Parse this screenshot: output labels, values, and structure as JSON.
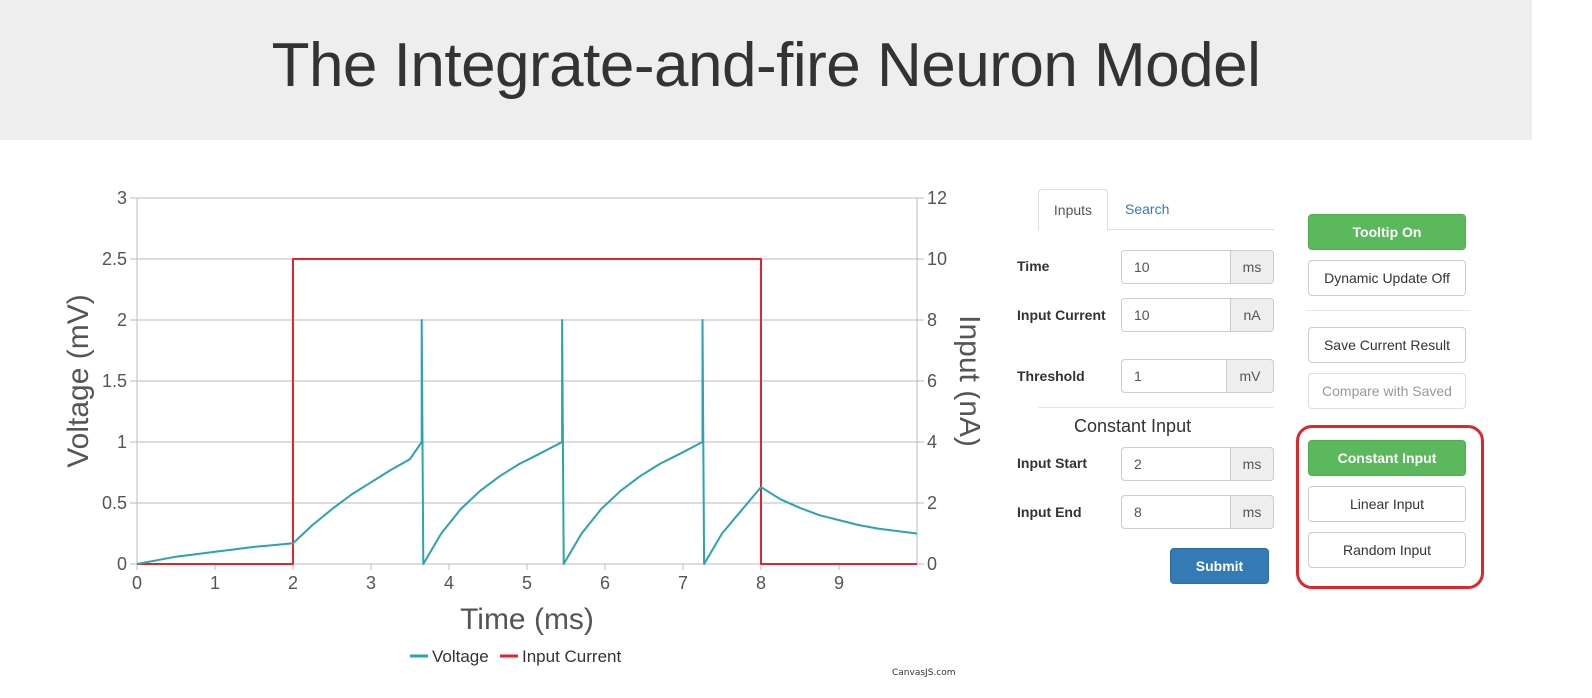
{
  "header": {
    "title": "The Integrate-and-fire Neuron Model"
  },
  "tabs": [
    {
      "label": "Inputs",
      "active": true
    },
    {
      "label": "Search",
      "active": false
    }
  ],
  "form": {
    "time": {
      "label": "Time",
      "value": "10",
      "unit": "ms"
    },
    "input_current": {
      "label": "Input Current",
      "value": "10",
      "unit": "nA"
    },
    "threshold": {
      "label": "Threshold",
      "value": "1",
      "unit": "mV"
    },
    "section_title": "Constant Input",
    "input_start": {
      "label": "Input Start",
      "value": "2",
      "unit": "ms"
    },
    "input_end": {
      "label": "Input End",
      "value": "8",
      "unit": "ms"
    },
    "submit_label": "Submit"
  },
  "controls": {
    "tooltip_label": "Tooltip On",
    "dynamic_update_label": "Dynamic Update Off",
    "save_label": "Save Current Result",
    "compare_label": "Compare with Saved",
    "constant_label": "Constant Input",
    "linear_label": "Linear Input",
    "random_label": "Random Input"
  },
  "credit": "CanvasJS.com",
  "colors": {
    "voltage": "#2ba3b1",
    "current": "#e0262d",
    "highlight": "#e0262d",
    "green": "#5cb85c",
    "blue": "#337ab7"
  },
  "chart_data": {
    "type": "line",
    "xlabel": "Time (ms)",
    "ylabel": "Voltage (mV)",
    "y2label": "Input (nA)",
    "xlim": [
      0,
      10
    ],
    "ylim": [
      0,
      3
    ],
    "y2lim": [
      0,
      12
    ],
    "xticks": [
      "0",
      "1",
      "2",
      "3",
      "4",
      "5",
      "6",
      "7",
      "8",
      "9"
    ],
    "yticks": [
      "0",
      "0.5",
      "1",
      "1.5",
      "2",
      "2.5",
      "3"
    ],
    "y2ticks": [
      "0",
      "2",
      "4",
      "6",
      "8",
      "10",
      "12"
    ],
    "legend_position": "bottom",
    "series": [
      {
        "name": "Voltage",
        "axis": "left",
        "points": [
          [
            0,
            0
          ],
          [
            0.25,
            0.03
          ],
          [
            0.5,
            0.06
          ],
          [
            0.75,
            0.08
          ],
          [
            1,
            0.1
          ],
          [
            1.25,
            0.12
          ],
          [
            1.5,
            0.14
          ],
          [
            1.75,
            0.155
          ],
          [
            2,
            0.17
          ],
          [
            2.25,
            0.32
          ],
          [
            2.5,
            0.45
          ],
          [
            2.75,
            0.57
          ],
          [
            3,
            0.67
          ],
          [
            3.25,
            0.77
          ],
          [
            3.5,
            0.86
          ],
          [
            3.65,
            1.0
          ],
          [
            3.65,
            2.0
          ],
          [
            3.67,
            0
          ],
          [
            3.9,
            0.25
          ],
          [
            4.15,
            0.45
          ],
          [
            4.4,
            0.6
          ],
          [
            4.65,
            0.72
          ],
          [
            4.9,
            0.82
          ],
          [
            5.15,
            0.9
          ],
          [
            5.45,
            1.0
          ],
          [
            5.45,
            2.0
          ],
          [
            5.47,
            0
          ],
          [
            5.7,
            0.25
          ],
          [
            5.95,
            0.45
          ],
          [
            6.2,
            0.6
          ],
          [
            6.45,
            0.72
          ],
          [
            6.7,
            0.82
          ],
          [
            6.95,
            0.9
          ],
          [
            7.25,
            1.0
          ],
          [
            7.25,
            2.0
          ],
          [
            7.27,
            0
          ],
          [
            7.5,
            0.25
          ],
          [
            7.75,
            0.44
          ],
          [
            8,
            0.63
          ],
          [
            8.25,
            0.53
          ],
          [
            8.5,
            0.46
          ],
          [
            8.75,
            0.4
          ],
          [
            9,
            0.36
          ],
          [
            9.25,
            0.32
          ],
          [
            9.5,
            0.29
          ],
          [
            9.75,
            0.27
          ],
          [
            10,
            0.25
          ]
        ]
      },
      {
        "name": "Input Current",
        "axis": "right",
        "points": [
          [
            0,
            0
          ],
          [
            2,
            0
          ],
          [
            2,
            10
          ],
          [
            8,
            10
          ],
          [
            8,
            0
          ],
          [
            10,
            0
          ]
        ]
      }
    ]
  }
}
